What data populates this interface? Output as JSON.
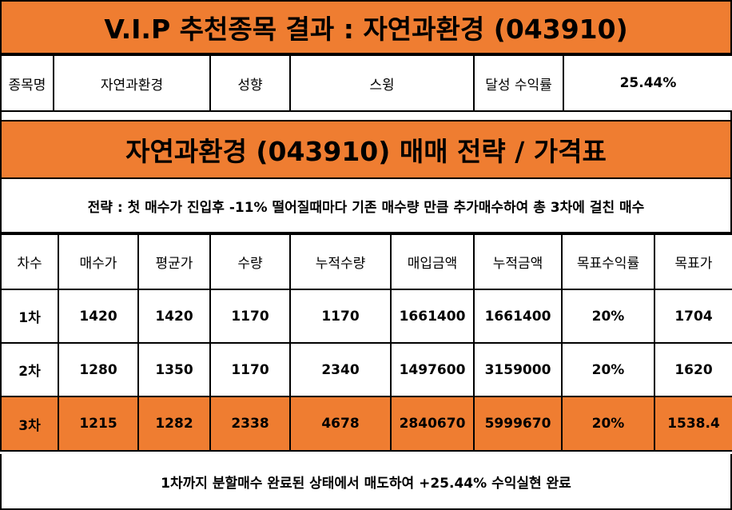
{
  "header": {
    "title": "V.I.P 추천종목 결과 : 자연과환경 (043910)"
  },
  "info": {
    "name_label": "종목명",
    "name_value": "자연과환경",
    "style_label": "성향",
    "style_value": "스윙",
    "return_label": "달성 수익률",
    "return_value": "25.44%"
  },
  "strategy": {
    "title": "자연과환경 (043910) 매매 전략 / 가격표",
    "description": "전략 : 첫 매수가 진입후 -11% 떨어질때마다 기존 매수량 만큼 추가매수하여 총 3차에 걸친 매수"
  },
  "table": {
    "headers": [
      "차수",
      "매수가",
      "평균가",
      "수량",
      "누적수량",
      "매입금액",
      "누적금액",
      "목표수익률",
      "목표가"
    ],
    "rows": [
      [
        "1차",
        "1420",
        "1420",
        "1170",
        "1170",
        "1661400",
        "1661400",
        "20%",
        "1704"
      ],
      [
        "2차",
        "1280",
        "1350",
        "1170",
        "2340",
        "1497600",
        "3159000",
        "20%",
        "1620"
      ],
      [
        "3차",
        "1215",
        "1282",
        "2338",
        "4678",
        "2840670",
        "5999670",
        "20%",
        "1538.4"
      ]
    ],
    "highlight_row": "3차"
  },
  "footer": {
    "text": "1차까지 분할매수 완료된 상태에서 매도하여 +25.44% 수익실현 완료"
  },
  "colors": {
    "accent": "#ef7d31",
    "border": "#000000",
    "background": "#ffffff"
  }
}
